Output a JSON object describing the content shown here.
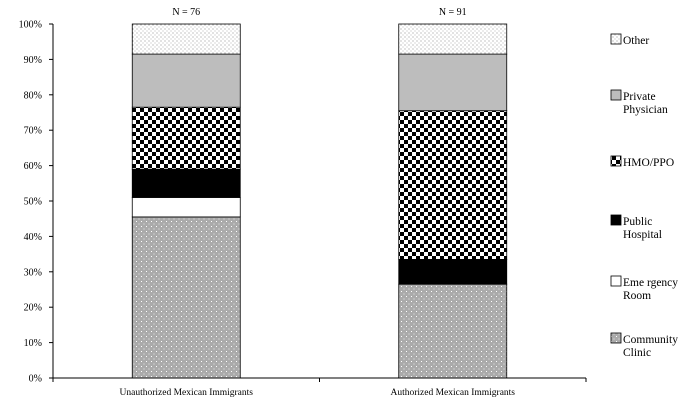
{
  "chart_data": {
    "type": "bar",
    "stacked": true,
    "orientation": "vertical",
    "categories": [
      "Unauthorized Mexican Immigrants",
      "Authorized Mexican Immigrants"
    ],
    "annotations": [
      "N = 76",
      "N = 91"
    ],
    "series": [
      {
        "name": "Community Clinic",
        "values": [
          45.5,
          26.5
        ]
      },
      {
        "name": "Eme rgency Room",
        "values": [
          5.5,
          0
        ]
      },
      {
        "name": "Public Hospital",
        "values": [
          8.0,
          7.0
        ]
      },
      {
        "name": "HMO/PPO",
        "values": [
          17.5,
          42.0
        ]
      },
      {
        "name": "Private Physician",
        "values": [
          15.0,
          16.0
        ]
      },
      {
        "name": "Other",
        "values": [
          8.5,
          8.5
        ]
      }
    ],
    "ylim": [
      0,
      100
    ],
    "yticks": [
      "0%",
      "10%",
      "20%",
      "30%",
      "40%",
      "50%",
      "60%",
      "70%",
      "80%",
      "90%",
      "100%"
    ],
    "grid": false,
    "legend_position": "right",
    "legend_order": [
      "Other",
      "Private Physician",
      "HMO/PPO",
      "Public Hospital",
      "Eme rgency Room",
      "Community Clinic"
    ],
    "legend_lines": {
      "Other": [
        "Other"
      ],
      "Private Physician": [
        "Private",
        "Physician"
      ],
      "HMO/PPO": [
        "HMO/PPO"
      ],
      "Public Hospital": [
        "Public",
        "Hospital"
      ],
      "Eme rgency Room": [
        "Eme rgency",
        "Room"
      ],
      "Community Clinic": [
        "Community",
        "Clinic"
      ]
    },
    "colors": {
      "Community Clinic": "#aaaaaa",
      "Eme rgency Room": "#ffffff",
      "Public Hospital": "#000000",
      "HMO/PPO": "#000000",
      "Private Physician": "#bdbdbd",
      "Other": "#ffffff"
    },
    "patterns": {
      "Community Clinic": "fine-dots",
      "Eme rgency Room": "solid",
      "Public Hospital": "solid",
      "HMO/PPO": "checker",
      "Private Physician": "solid",
      "Other": "sparse-dots"
    }
  }
}
